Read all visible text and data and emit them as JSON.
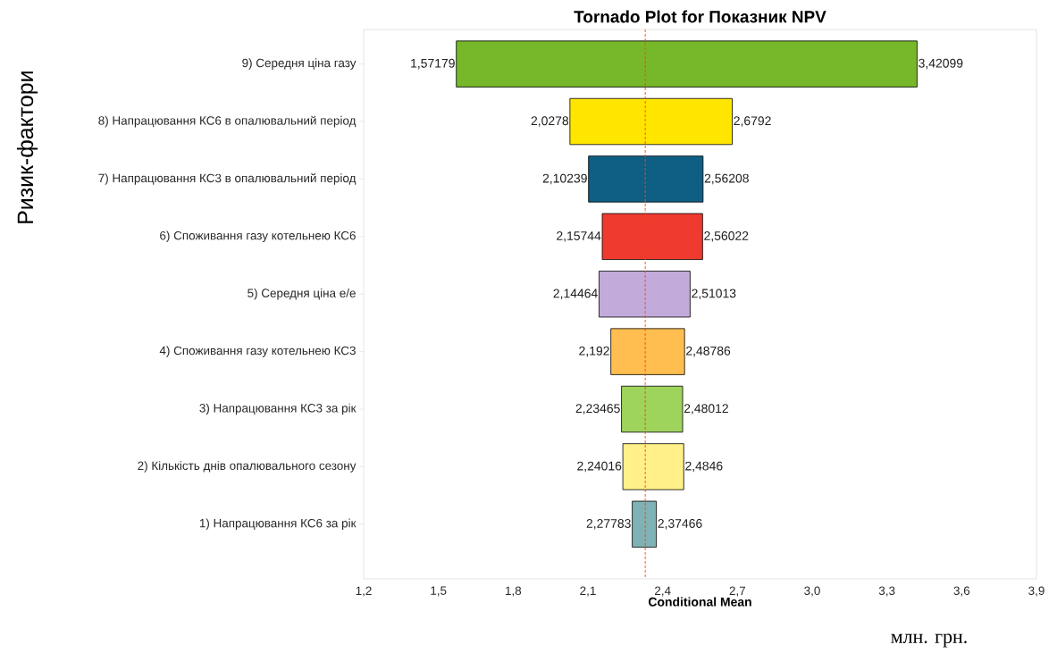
{
  "chart_data": {
    "type": "bar",
    "orientation": "horizontal",
    "title": "Tornado Plot for Показник NPV",
    "xlabel": "Conditional Mean",
    "ylabel": "Ризик-фактори",
    "categories": [
      "9) Середня ціна газу",
      "8) Напрацювання КС6 в опалювальний період",
      "7) Напрацювання КС3 в опалювальний період",
      "6) Споживання газу котельнею КС6",
      "5) Середня ціна е/е",
      "4) Споживання газу котельнею КС3",
      "3) Напрацювання КС3 за рік",
      "2) Кількість днів опалювального сезону",
      "1) Напрацювання КС6 за рік"
    ],
    "base": [
      1.57179,
      2.0278,
      2.10239,
      2.15744,
      2.14464,
      2.192,
      2.23465,
      2.24016,
      2.27783
    ],
    "values": [
      1.8492,
      0.6514,
      0.45969,
      0.40278,
      0.36549,
      0.29586,
      0.24547,
      0.24444,
      0.09683
    ],
    "colors": [
      "#76b82a",
      "#ffe600",
      "#0f5f85",
      "#ee3a2f",
      "#c2aadb",
      "#ffbe4f",
      "#9ed35c",
      "#fff08a",
      "#7fb2b5"
    ],
    "xlim": [
      1.2,
      3.9
    ],
    "xticks": [
      {
        "value": 1.2,
        "label": "1,2"
      },
      {
        "value": 1.5,
        "label": "1,5"
      },
      {
        "value": 1.8,
        "label": "1,8"
      },
      {
        "value": 2.1,
        "label": "2,1"
      },
      {
        "value": 2.4,
        "label": "2,4"
      },
      {
        "value": 2.7,
        "label": "2,7"
      },
      {
        "value": 3.0,
        "label": "3,0"
      },
      {
        "value": 3.3,
        "label": "3,3"
      },
      {
        "value": 3.6,
        "label": "3,6"
      },
      {
        "value": 3.9,
        "label": "3,9"
      }
    ],
    "ref_lines": [
      {
        "axis": "x",
        "value": 2.33,
        "color": "#ff4500",
        "line_style": "dashed"
      }
    ],
    "grid": false,
    "annotations": [
      {
        "text": "1,57179",
        "x": 1.57179,
        "y": "9) Середня ціна газу"
      },
      {
        "text": "3,42099",
        "x": 3.42099,
        "y": "9) Середня ціна газу"
      },
      {
        "text": "2,0278",
        "x": 2.0278,
        "y": "8) Напрацювання КС6 в опалювальний період"
      },
      {
        "text": "2,6792",
        "x": 2.6792,
        "y": "8) Напрацювання КС6 в опалювальний період"
      },
      {
        "text": "2,10239",
        "x": 2.10239,
        "y": "7) Напрацювання КС3 в опалювальний період"
      },
      {
        "text": "2,56208",
        "x": 2.56208,
        "y": "7) Напрацювання КС3 в опалювальний період"
      },
      {
        "text": "2,15744",
        "x": 2.15744,
        "y": "6) Споживання газу котельнею КС6"
      },
      {
        "text": "2,56022",
        "x": 2.56022,
        "y": "6) Споживання газу котельнею КС6"
      },
      {
        "text": "2,14464",
        "x": 2.14464,
        "y": "5) Середня ціна е/е"
      },
      {
        "text": "2,51013",
        "x": 2.51013,
        "y": "5) Середня ціна е/е"
      },
      {
        "text": "2,192",
        "x": 2.192,
        "y": "4) Споживання газу котельнею КС3"
      },
      {
        "text": "2,48786",
        "x": 2.48786,
        "y": "4) Споживання газу котельнею КС3"
      },
      {
        "text": "2,23465",
        "x": 2.23465,
        "y": "3) Напрацювання КС3 за рік"
      },
      {
        "text": "2,48012",
        "x": 2.48012,
        "y": "3) Напрацювання КС3 за рік"
      },
      {
        "text": "2,24016",
        "x": 2.24016,
        "y": "2) Кількість днів опалювального сезону"
      },
      {
        "text": "2,4846",
        "x": 2.4846,
        "y": "2) Кількість днів опалювального сезону"
      },
      {
        "text": "2,27783",
        "x": 2.27783,
        "y": "1) Напрацювання КС6 за рік"
      },
      {
        "text": "2,37466",
        "x": 2.37466,
        "y": "1) Напрацювання КС6 за рік"
      },
      "млн. грн."
    ]
  }
}
